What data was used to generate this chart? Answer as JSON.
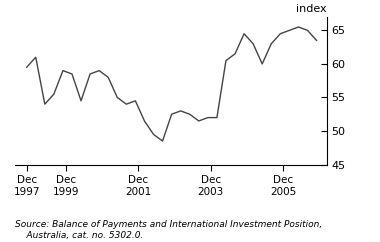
{
  "ylabel": "index",
  "ylim": [
    45,
    67
  ],
  "yticks": [
    45,
    50,
    55,
    60,
    65
  ],
  "source_line1": "Source: Balance of Payments and International Investment Position,",
  "source_line2": "    Australia, cat. no. 5302.0.",
  "line_color": "#444444",
  "line_width": 1.0,
  "x_values": [
    1997.917,
    1998.167,
    1998.417,
    1998.667,
    1998.917,
    1999.167,
    1999.417,
    1999.667,
    1999.917,
    2000.167,
    2000.417,
    2000.667,
    2000.917,
    2001.167,
    2001.417,
    2001.667,
    2001.917,
    2002.167,
    2002.417,
    2002.667,
    2002.917,
    2003.167,
    2003.417,
    2003.667,
    2003.917,
    2004.167,
    2004.417,
    2004.667,
    2004.917,
    2005.167,
    2005.417,
    2005.667,
    2005.917
  ],
  "y_values": [
    59.5,
    61.0,
    54.0,
    55.5,
    59.0,
    58.5,
    54.5,
    58.5,
    59.0,
    58.0,
    55.0,
    54.0,
    54.5,
    51.5,
    49.5,
    48.5,
    52.5,
    53.0,
    52.5,
    51.5,
    52.0,
    52.0,
    60.5,
    61.5,
    64.5,
    63.0,
    60.0,
    63.0,
    64.5,
    65.0,
    65.5,
    65.0,
    63.5
  ],
  "xtick_positions": [
    1997.917,
    1999.0,
    2001.0,
    2003.0,
    2005.0
  ],
  "xtick_labels": [
    "Dec\n1997",
    "Dec\n1999",
    "Dec\n2001",
    "Dec\n2003",
    "Dec\n2005"
  ],
  "xlim_left": 1997.6,
  "xlim_right": 2006.2,
  "background_color": "#ffffff"
}
